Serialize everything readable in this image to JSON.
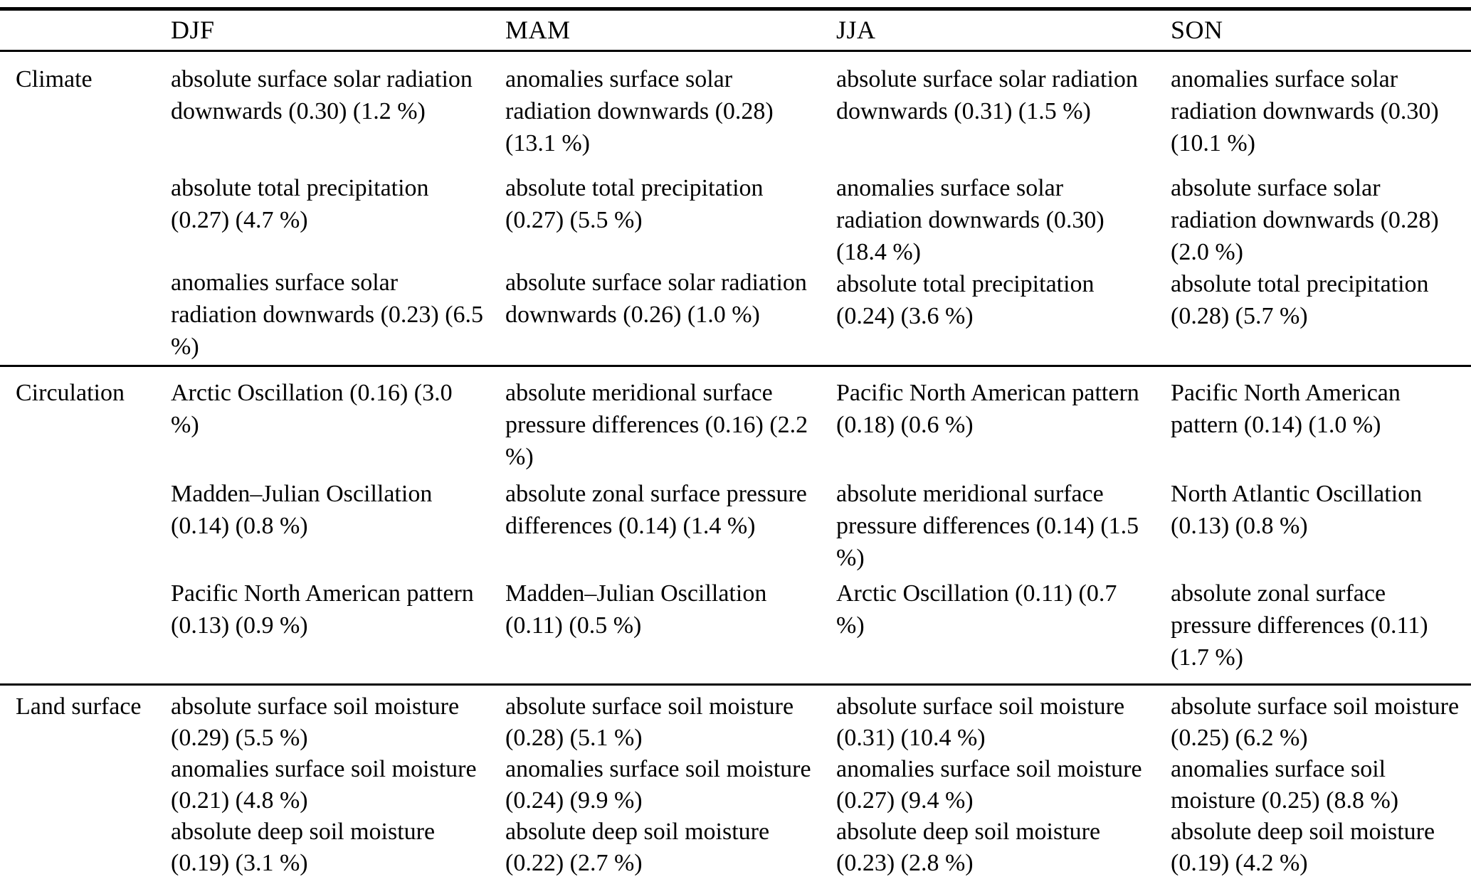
{
  "colors": {
    "text": "#000000",
    "background": "#ffffff",
    "rule": "#000000"
  },
  "table": {
    "headers": [
      "DJF",
      "MAM",
      "JJA",
      "SON"
    ],
    "rows": [
      {
        "label": "Climate",
        "DJF": [
          "absolute surface solar radiation downwards (0.30) (1.2 %)",
          "absolute total precipitation (0.27) (4.7 %)",
          "anomalies surface solar radiation downwards (0.23) (6.5 %)"
        ],
        "MAM": [
          "anomalies surface solar radiation downwards (0.28) (13.1 %)",
          "absolute total precipitation (0.27) (5.5 %)",
          "absolute surface solar radiation downwards (0.26) (1.0 %)"
        ],
        "JJA": [
          "absolute surface solar radiation downwards (0.31) (1.5 %)",
          "anomalies surface solar radiation downwards (0.30) (18.4 %)",
          "absolute total precipitation (0.24) (3.6 %)"
        ],
        "SON": [
          "anomalies surface solar radiation downwards (0.30) (10.1 %)",
          "absolute surface solar radiation downwards (0.28) (2.0 %)",
          "absolute total precipitation (0.28) (5.7 %)"
        ]
      },
      {
        "label": "Circulation",
        "DJF": [
          "Arctic Oscillation (0.16) (3.0 %)",
          "Madden–Julian Oscillation (0.14) (0.8 %)",
          "Pacific North American pattern (0.13) (0.9 %)"
        ],
        "MAM": [
          "absolute meridional surface pressure differences (0.16) (2.2 %)",
          "absolute zonal surface pressure differences (0.14) (1.4 %)",
          "Madden–Julian Oscillation (0.11) (0.5 %)"
        ],
        "JJA": [
          "Pacific North American pattern (0.18) (0.6 %)",
          "absolute meridional surface pressure differences (0.14) (1.5 %)",
          "Arctic Oscillation (0.11) (0.7 %)"
        ],
        "SON": [
          "Pacific North American pattern (0.14) (1.0 %)",
          "North Atlantic Oscillation (0.13) (0.8 %)",
          "absolute zonal surface pressure differences (0.11) (1.7 %)"
        ]
      },
      {
        "label": "Land surface",
        "DJF": [
          "absolute surface soil moisture (0.29) (5.5 %)",
          "anomalies surface soil moisture (0.21) (4.8 %)",
          "absolute deep soil moisture (0.19) (3.1 %)"
        ],
        "MAM": [
          "absolute surface soil moisture (0.28) (5.1 %)",
          "anomalies surface soil moisture (0.24) (9.9 %)",
          "absolute deep soil moisture (0.22) (2.7 %)"
        ],
        "JJA": [
          "absolute surface soil moisture (0.31) (10.4 %)",
          "anomalies surface soil moisture (0.27) (9.4 %)",
          "absolute deep soil moisture (0.23) (2.8 %)"
        ],
        "SON": [
          "absolute surface soil moisture (0.25) (6.2 %)",
          "anomalies surface soil moisture (0.25) (8.8 %)",
          "absolute deep soil moisture (0.19) (4.2 %)"
        ]
      }
    ]
  }
}
